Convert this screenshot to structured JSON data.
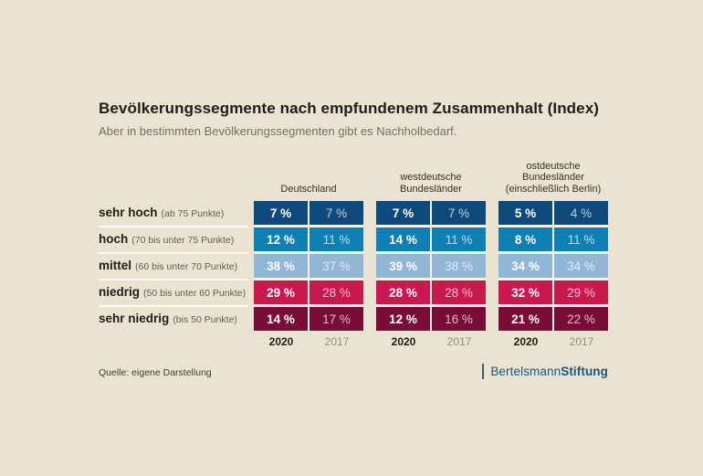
{
  "page": {
    "background": "#eae3d1"
  },
  "header": {
    "title": "Bevölkerungssegmente nach empfundenem Zusammenhalt (Index)",
    "subtitle": "Aber in bestimmten Bevölkerungssegmenten gibt es Nachholbedarf."
  },
  "footer": {
    "source": "Quelle: eigene Darstellung",
    "logo": {
      "name": "Bertelsmann",
      "bold": "Stiftung",
      "color": "#1a567e"
    }
  },
  "chart_data": {
    "type": "table",
    "title": "Bevölkerungssegmente nach empfundenem Zusammenhalt (Index)",
    "subtitle": "Aber in bestimmten Bevölkerungssegmenten gibt es Nachholbedarf.",
    "unit": "%",
    "legend_position": "none",
    "column_groups": [
      {
        "label": "Deutschland",
        "years": [
          "2020",
          "2017"
        ]
      },
      {
        "label": "westdeutsche\nBundesländer",
        "years": [
          "2020",
          "2017"
        ]
      },
      {
        "label": "ostdeutsche\nBundesländer\n(einschließlich Berlin)",
        "years": [
          "2020",
          "2017"
        ]
      }
    ],
    "rows": [
      {
        "label": "sehr hoch",
        "range": "(ab 75 Punkte)",
        "color": "#0f4a7d",
        "values": [
          [
            "7 %",
            "7 %"
          ],
          [
            "7 %",
            "7 %"
          ],
          [
            "5 %",
            "4 %"
          ]
        ]
      },
      {
        "label": "hoch",
        "range": "(70 bis unter 75 Punkte)",
        "color": "#0e80b3",
        "values": [
          [
            "12 %",
            "11 %"
          ],
          [
            "14 %",
            "11 %"
          ],
          [
            "8 %",
            "11 %"
          ]
        ]
      },
      {
        "label": "mittel",
        "range": "(60 bis unter 70 Punkte)",
        "color": "#92b6d5",
        "values": [
          [
            "38 %",
            "37 %"
          ],
          [
            "39 %",
            "38 %"
          ],
          [
            "34 %",
            "34 %"
          ]
        ]
      },
      {
        "label": "niedrig",
        "range": "(50 bis unter 60 Punkte)",
        "color": "#c9194f",
        "values": [
          [
            "29 %",
            "28 %"
          ],
          [
            "28 %",
            "28 %"
          ],
          [
            "32 %",
            "29 %"
          ]
        ]
      },
      {
        "label": "sehr niedrig",
        "range": "(bis 50 Punkte)",
        "color": "#7a0d35",
        "values": [
          [
            "14 %",
            "17 %"
          ],
          [
            "12 %",
            "16 %"
          ],
          [
            "21 %",
            "22 %"
          ]
        ]
      }
    ]
  }
}
